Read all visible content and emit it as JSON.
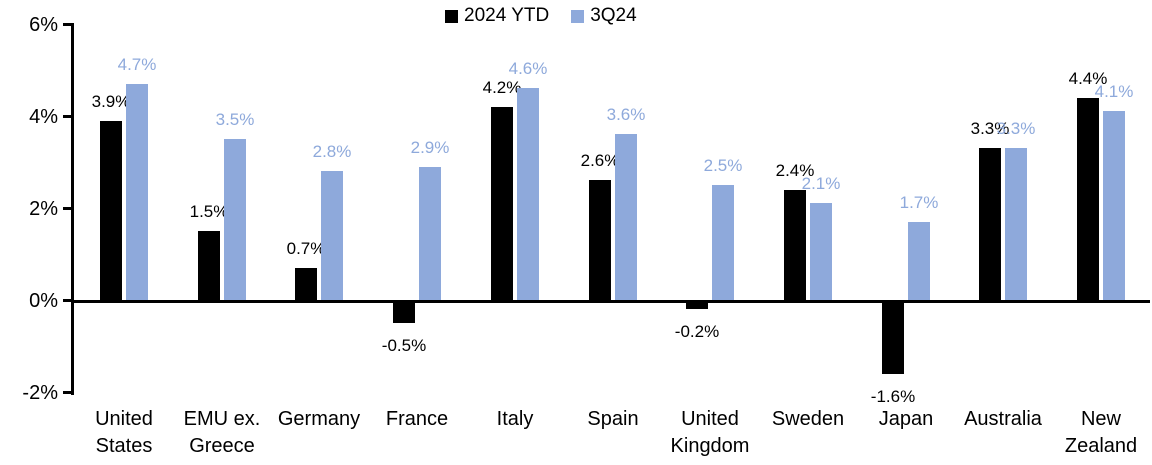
{
  "chart_data": {
    "type": "bar",
    "title": "",
    "xlabel": "",
    "ylabel": "",
    "ylim": [
      -2,
      6
    ],
    "yticks": [
      6,
      4,
      2,
      0,
      -2
    ],
    "ytick_labels": [
      "6%",
      "4%",
      "2%",
      "0%",
      "-2%"
    ],
    "grid": false,
    "legend_position": "top-center",
    "background_color": "#FFFFFF",
    "axis_color": "#000000",
    "categories": [
      "United States",
      "EMU ex. Greece",
      "Germany",
      "France",
      "Italy",
      "Spain",
      "United Kingdom",
      "Sweden",
      "Japan",
      "Australia",
      "New Zealand"
    ],
    "categories_display": [
      "United\nStates",
      "EMU ex.\nGreece",
      "Germany",
      "France",
      "Italy",
      "Spain",
      "United\nKingdom",
      "Sweden",
      "Japan",
      "Australia",
      "New\nZealand"
    ],
    "series": [
      {
        "name": "2024 YTD",
        "color": "#000000",
        "values": [
          3.9,
          1.5,
          0.7,
          -0.5,
          4.2,
          2.6,
          -0.2,
          2.4,
          -1.6,
          3.3,
          4.4
        ],
        "labels": [
          "3.9%",
          "1.5%",
          "0.7%",
          "-0.5%",
          "4.2%",
          "2.6%",
          "-0.2%",
          "2.4%",
          "-1.6%",
          "3.3%",
          "4.4%"
        ]
      },
      {
        "name": "3Q24",
        "color": "#8EA9DB",
        "values": [
          4.7,
          3.5,
          2.8,
          2.9,
          4.6,
          3.6,
          2.5,
          2.1,
          1.7,
          3.3,
          4.1
        ],
        "labels": [
          "4.7%",
          "3.5%",
          "2.8%",
          "2.9%",
          "4.6%",
          "3.6%",
          "2.5%",
          "2.1%",
          "1.7%",
          "3.3%",
          "4.1%"
        ]
      }
    ]
  }
}
